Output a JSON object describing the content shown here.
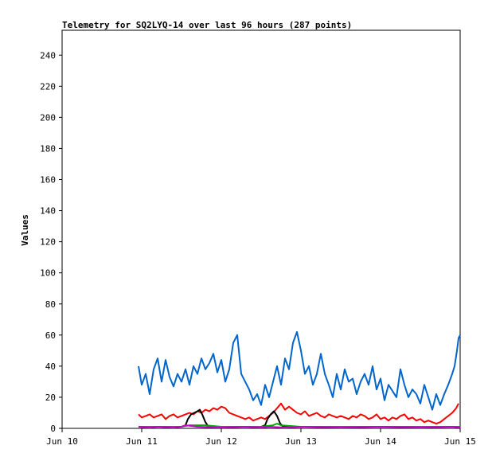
{
  "chart_data": {
    "type": "line",
    "title": "Telemetry for SQ2LYQ-14 over last 96 hours (287 points)",
    "xlabel": "",
    "ylabel": "Values",
    "xlim": [
      0,
      5
    ],
    "ylim": [
      0,
      256
    ],
    "x_tick_labels": [
      "Jun 10",
      "Jun 11",
      "Jun 12",
      "Jun 13",
      "Jun 14",
      "Jun 15"
    ],
    "x_tick_positions": [
      0,
      1,
      2,
      3,
      4,
      5
    ],
    "y_ticks": [
      0,
      20,
      40,
      60,
      80,
      100,
      120,
      140,
      160,
      180,
      200,
      220,
      240
    ],
    "grid": false,
    "legend": "none",
    "series": [
      {
        "color": "#0066cc",
        "x": [
          0.96,
          1.0,
          1.05,
          1.1,
          1.15,
          1.2,
          1.25,
          1.3,
          1.35,
          1.4,
          1.45,
          1.5,
          1.55,
          1.6,
          1.65,
          1.7,
          1.75,
          1.8,
          1.85,
          1.9,
          1.95,
          2.0,
          2.05,
          2.1,
          2.15,
          2.2,
          2.25,
          2.3,
          2.35,
          2.4,
          2.45,
          2.5,
          2.55,
          2.6,
          2.65,
          2.7,
          2.75,
          2.8,
          2.85,
          2.9,
          2.95,
          3.0,
          3.05,
          3.1,
          3.15,
          3.2,
          3.25,
          3.3,
          3.35,
          3.4,
          3.45,
          3.5,
          3.55,
          3.6,
          3.65,
          3.7,
          3.75,
          3.8,
          3.85,
          3.9,
          3.95,
          4.0,
          4.05,
          4.1,
          4.15,
          4.2,
          4.25,
          4.3,
          4.35,
          4.4,
          4.45,
          4.5,
          4.55,
          4.6,
          4.65,
          4.7,
          4.75,
          4.8,
          4.85,
          4.9,
          4.93,
          4.96,
          4.98,
          5.0
        ],
        "values": [
          40,
          28,
          35,
          22,
          38,
          45,
          30,
          44,
          33,
          27,
          35,
          30,
          38,
          28,
          40,
          35,
          45,
          38,
          42,
          48,
          36,
          44,
          30,
          38,
          55,
          60,
          35,
          30,
          25,
          18,
          22,
          15,
          28,
          20,
          30,
          40,
          28,
          45,
          38,
          55,
          62,
          50,
          35,
          40,
          28,
          35,
          48,
          35,
          28,
          20,
          35,
          25,
          38,
          30,
          32,
          22,
          30,
          35,
          28,
          40,
          25,
          32,
          18,
          28,
          24,
          20,
          38,
          28,
          20,
          25,
          22,
          16,
          28,
          20,
          12,
          22,
          15,
          22,
          28,
          35,
          40,
          50,
          58,
          60
        ]
      },
      {
        "color": "#ff0000",
        "x": [
          0.96,
          1.0,
          1.05,
          1.1,
          1.15,
          1.2,
          1.25,
          1.3,
          1.35,
          1.4,
          1.45,
          1.5,
          1.55,
          1.6,
          1.65,
          1.7,
          1.75,
          1.8,
          1.85,
          1.9,
          1.95,
          2.0,
          2.05,
          2.1,
          2.15,
          2.2,
          2.25,
          2.3,
          2.35,
          2.4,
          2.45,
          2.5,
          2.55,
          2.6,
          2.65,
          2.7,
          2.75,
          2.8,
          2.85,
          2.9,
          2.95,
          3.0,
          3.05,
          3.1,
          3.15,
          3.2,
          3.25,
          3.3,
          3.35,
          3.4,
          3.45,
          3.5,
          3.55,
          3.6,
          3.65,
          3.7,
          3.75,
          3.8,
          3.85,
          3.9,
          3.95,
          4.0,
          4.05,
          4.1,
          4.15,
          4.2,
          4.25,
          4.3,
          4.35,
          4.4,
          4.45,
          4.5,
          4.55,
          4.6,
          4.65,
          4.7,
          4.75,
          4.8,
          4.85,
          4.9,
          4.95,
          4.98
        ],
        "values": [
          9,
          7,
          8,
          9,
          7,
          8,
          9,
          6,
          8,
          9,
          7,
          8,
          9,
          10,
          9,
          11,
          10,
          12,
          11,
          13,
          12,
          14,
          13,
          10,
          9,
          8,
          7,
          6,
          7,
          5,
          6,
          7,
          6,
          8,
          10,
          13,
          16,
          12,
          14,
          12,
          10,
          9,
          11,
          8,
          9,
          10,
          8,
          7,
          9,
          8,
          7,
          8,
          7,
          6,
          8,
          7,
          9,
          8,
          6,
          7,
          9,
          6,
          7,
          5,
          7,
          6,
          8,
          9,
          6,
          7,
          5,
          6,
          4,
          5,
          4,
          3,
          4,
          6,
          8,
          10,
          13,
          16
        ]
      },
      {
        "color": "#000000",
        "x": [
          0.96,
          1.0,
          1.1,
          1.2,
          1.3,
          1.4,
          1.5,
          1.55,
          1.58,
          1.62,
          1.66,
          1.7,
          1.73,
          1.76,
          1.8,
          1.84,
          1.9,
          2.0,
          2.1,
          2.2,
          2.3,
          2.4,
          2.5,
          2.55,
          2.58,
          2.62,
          2.66,
          2.7,
          2.74,
          2.78,
          2.82,
          2.9,
          3.0,
          3.2,
          3.4,
          3.6,
          3.8,
          4.0,
          4.2,
          4.4,
          4.6,
          4.8,
          5.0
        ],
        "values": [
          1,
          1,
          1,
          1,
          1,
          1,
          1,
          2,
          6,
          9,
          10,
          11,
          12,
          9,
          4,
          1,
          1,
          1,
          1,
          1,
          1,
          1,
          1,
          2,
          6,
          9,
          11,
          8,
          3,
          1,
          1,
          1,
          1,
          1,
          1,
          1,
          1,
          1,
          1,
          1,
          1,
          1,
          1
        ]
      },
      {
        "color": "#00aa00",
        "x": [
          0.96,
          1.2,
          1.5,
          1.6,
          1.8,
          2.0,
          2.3,
          2.5,
          2.65,
          2.7,
          2.75,
          3.0,
          3.5,
          4.0,
          4.5,
          5.0
        ],
        "values": [
          1,
          1,
          1,
          2,
          2,
          1,
          1,
          1,
          2,
          3,
          2,
          1,
          1,
          1,
          1,
          1
        ]
      },
      {
        "color": "#cc00cc",
        "x": [
          0.96,
          1.1,
          1.2,
          1.4,
          1.5,
          1.55,
          1.7,
          2.0,
          2.3,
          2.5,
          2.6,
          2.8,
          3.0,
          3.5,
          4.0,
          4.5,
          4.9,
          5.0
        ],
        "values": [
          1,
          0.5,
          1,
          0.5,
          1,
          2,
          1,
          0.5,
          1,
          0.5,
          1,
          0.5,
          1,
          0.5,
          1,
          0.5,
          1,
          0.5
        ]
      }
    ]
  }
}
